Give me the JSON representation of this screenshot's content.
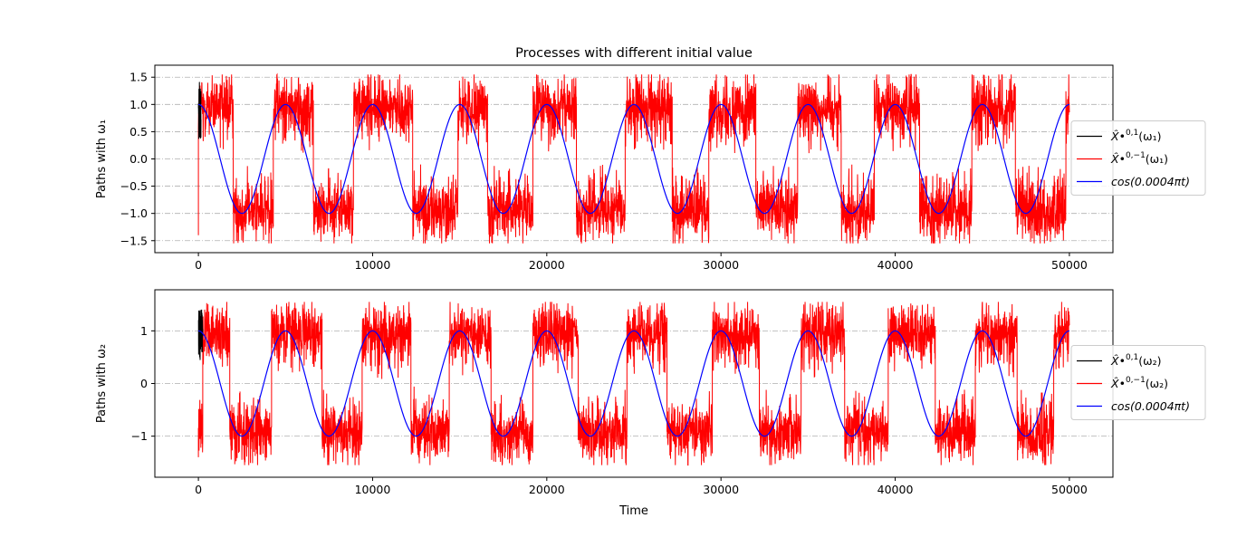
{
  "figure": {
    "title": "Processes with different initial value",
    "xlabel": "Time"
  },
  "chart_data": [
    {
      "type": "line",
      "title": "Processes with different initial value",
      "xlabel": "",
      "ylabel": "Paths with ω₁",
      "xlim": [
        -2500,
        52500
      ],
      "ylim": [
        -1.72,
        1.72
      ],
      "xticks": [
        0,
        10000,
        20000,
        30000,
        40000,
        50000
      ],
      "xtick_labels": [
        "0",
        "10000",
        "20000",
        "30000",
        "40000",
        "50000"
      ],
      "yticks": [
        -1.5,
        -1.0,
        -0.5,
        0.0,
        0.5,
        1.0,
        1.5
      ],
      "ytick_labels": [
        "−1.5",
        "−1.0",
        "−0.5",
        "0.0",
        "0.5",
        "1.0",
        "1.5"
      ],
      "grid": "horizontal dash-dot",
      "legend_position": "right, outside",
      "legend": [
        "X̂•^{0,1}(ω₁)",
        "X̂•^{0,−1}(ω₁)",
        "cos(0.0004πt)"
      ],
      "series": [
        {
          "name": "X̂•^{0,1}(ω₁)",
          "color": "#000000",
          "x_range": [
            0,
            150
          ],
          "band": [
            0.35,
            1.45
          ]
        },
        {
          "name": "X̂•^{0,−1}(ω₁)",
          "color": "#ff0000",
          "initial_value": -1.4,
          "regime_switch_times": [
            0,
            2000,
            4300,
            6600,
            8900,
            12300,
            14900,
            16600,
            19200,
            21700,
            24500,
            27200,
            29300,
            32000,
            34400,
            36900,
            38800,
            41400,
            44400,
            46900,
            49800,
            50000
          ],
          "regimes": [
            "high",
            "low",
            "high",
            "low",
            "high",
            "low",
            "high",
            "low",
            "high",
            "low",
            "high",
            "low",
            "high",
            "low",
            "high",
            "low",
            "high",
            "low",
            "high",
            "low",
            "high"
          ],
          "high_band": [
            0.1,
            1.5
          ],
          "low_band": [
            -1.5,
            -0.4
          ]
        },
        {
          "name": "cos(0.0004πt)",
          "color": "#0000ff",
          "function": "cos(0.0004*pi*t)",
          "x_range": [
            0,
            50000
          ]
        }
      ]
    },
    {
      "type": "line",
      "title": "",
      "xlabel": "Time",
      "ylabel": "Paths with ω₂",
      "xlim": [
        -2500,
        52500
      ],
      "ylim": [
        -1.78,
        1.78
      ],
      "xticks": [
        0,
        10000,
        20000,
        30000,
        40000,
        50000
      ],
      "xtick_labels": [
        "0",
        "10000",
        "20000",
        "30000",
        "40000",
        "50000"
      ],
      "yticks": [
        -1,
        0,
        1
      ],
      "ytick_labels": [
        "−1",
        "0",
        "1"
      ],
      "grid": "horizontal dash-dot",
      "legend_position": "right, outside",
      "legend": [
        "X̂•^{0,1}(ω₂)",
        "X̂•^{0,−1}(ω₂)",
        "cos(0.0004πt)"
      ],
      "series": [
        {
          "name": "X̂•^{0,1}(ω₂)",
          "color": "#000000",
          "x_range": [
            0,
            250
          ],
          "band": [
            0.35,
            1.45
          ]
        },
        {
          "name": "X̂•^{0,−1}(ω₂)",
          "color": "#ff0000",
          "initial_value": -1.4,
          "regime_switch_times": [
            0,
            250,
            1800,
            4200,
            7100,
            9400,
            12200,
            14400,
            16800,
            19200,
            21800,
            24600,
            26900,
            29500,
            32200,
            34600,
            37100,
            39600,
            42300,
            44600,
            47000,
            49100,
            50000
          ],
          "regimes": [
            "low",
            "high",
            "low",
            "high",
            "low",
            "high",
            "low",
            "high",
            "low",
            "high",
            "low",
            "high",
            "low",
            "high",
            "low",
            "high",
            "low",
            "high",
            "low",
            "high",
            "low",
            "high"
          ],
          "high_band": [
            0.2,
            1.5
          ],
          "low_band": [
            -1.5,
            -0.4
          ]
        },
        {
          "name": "cos(0.0004πt)",
          "color": "#0000ff",
          "function": "cos(0.0004*pi*t)",
          "x_range": [
            0,
            50000
          ]
        }
      ]
    }
  ]
}
